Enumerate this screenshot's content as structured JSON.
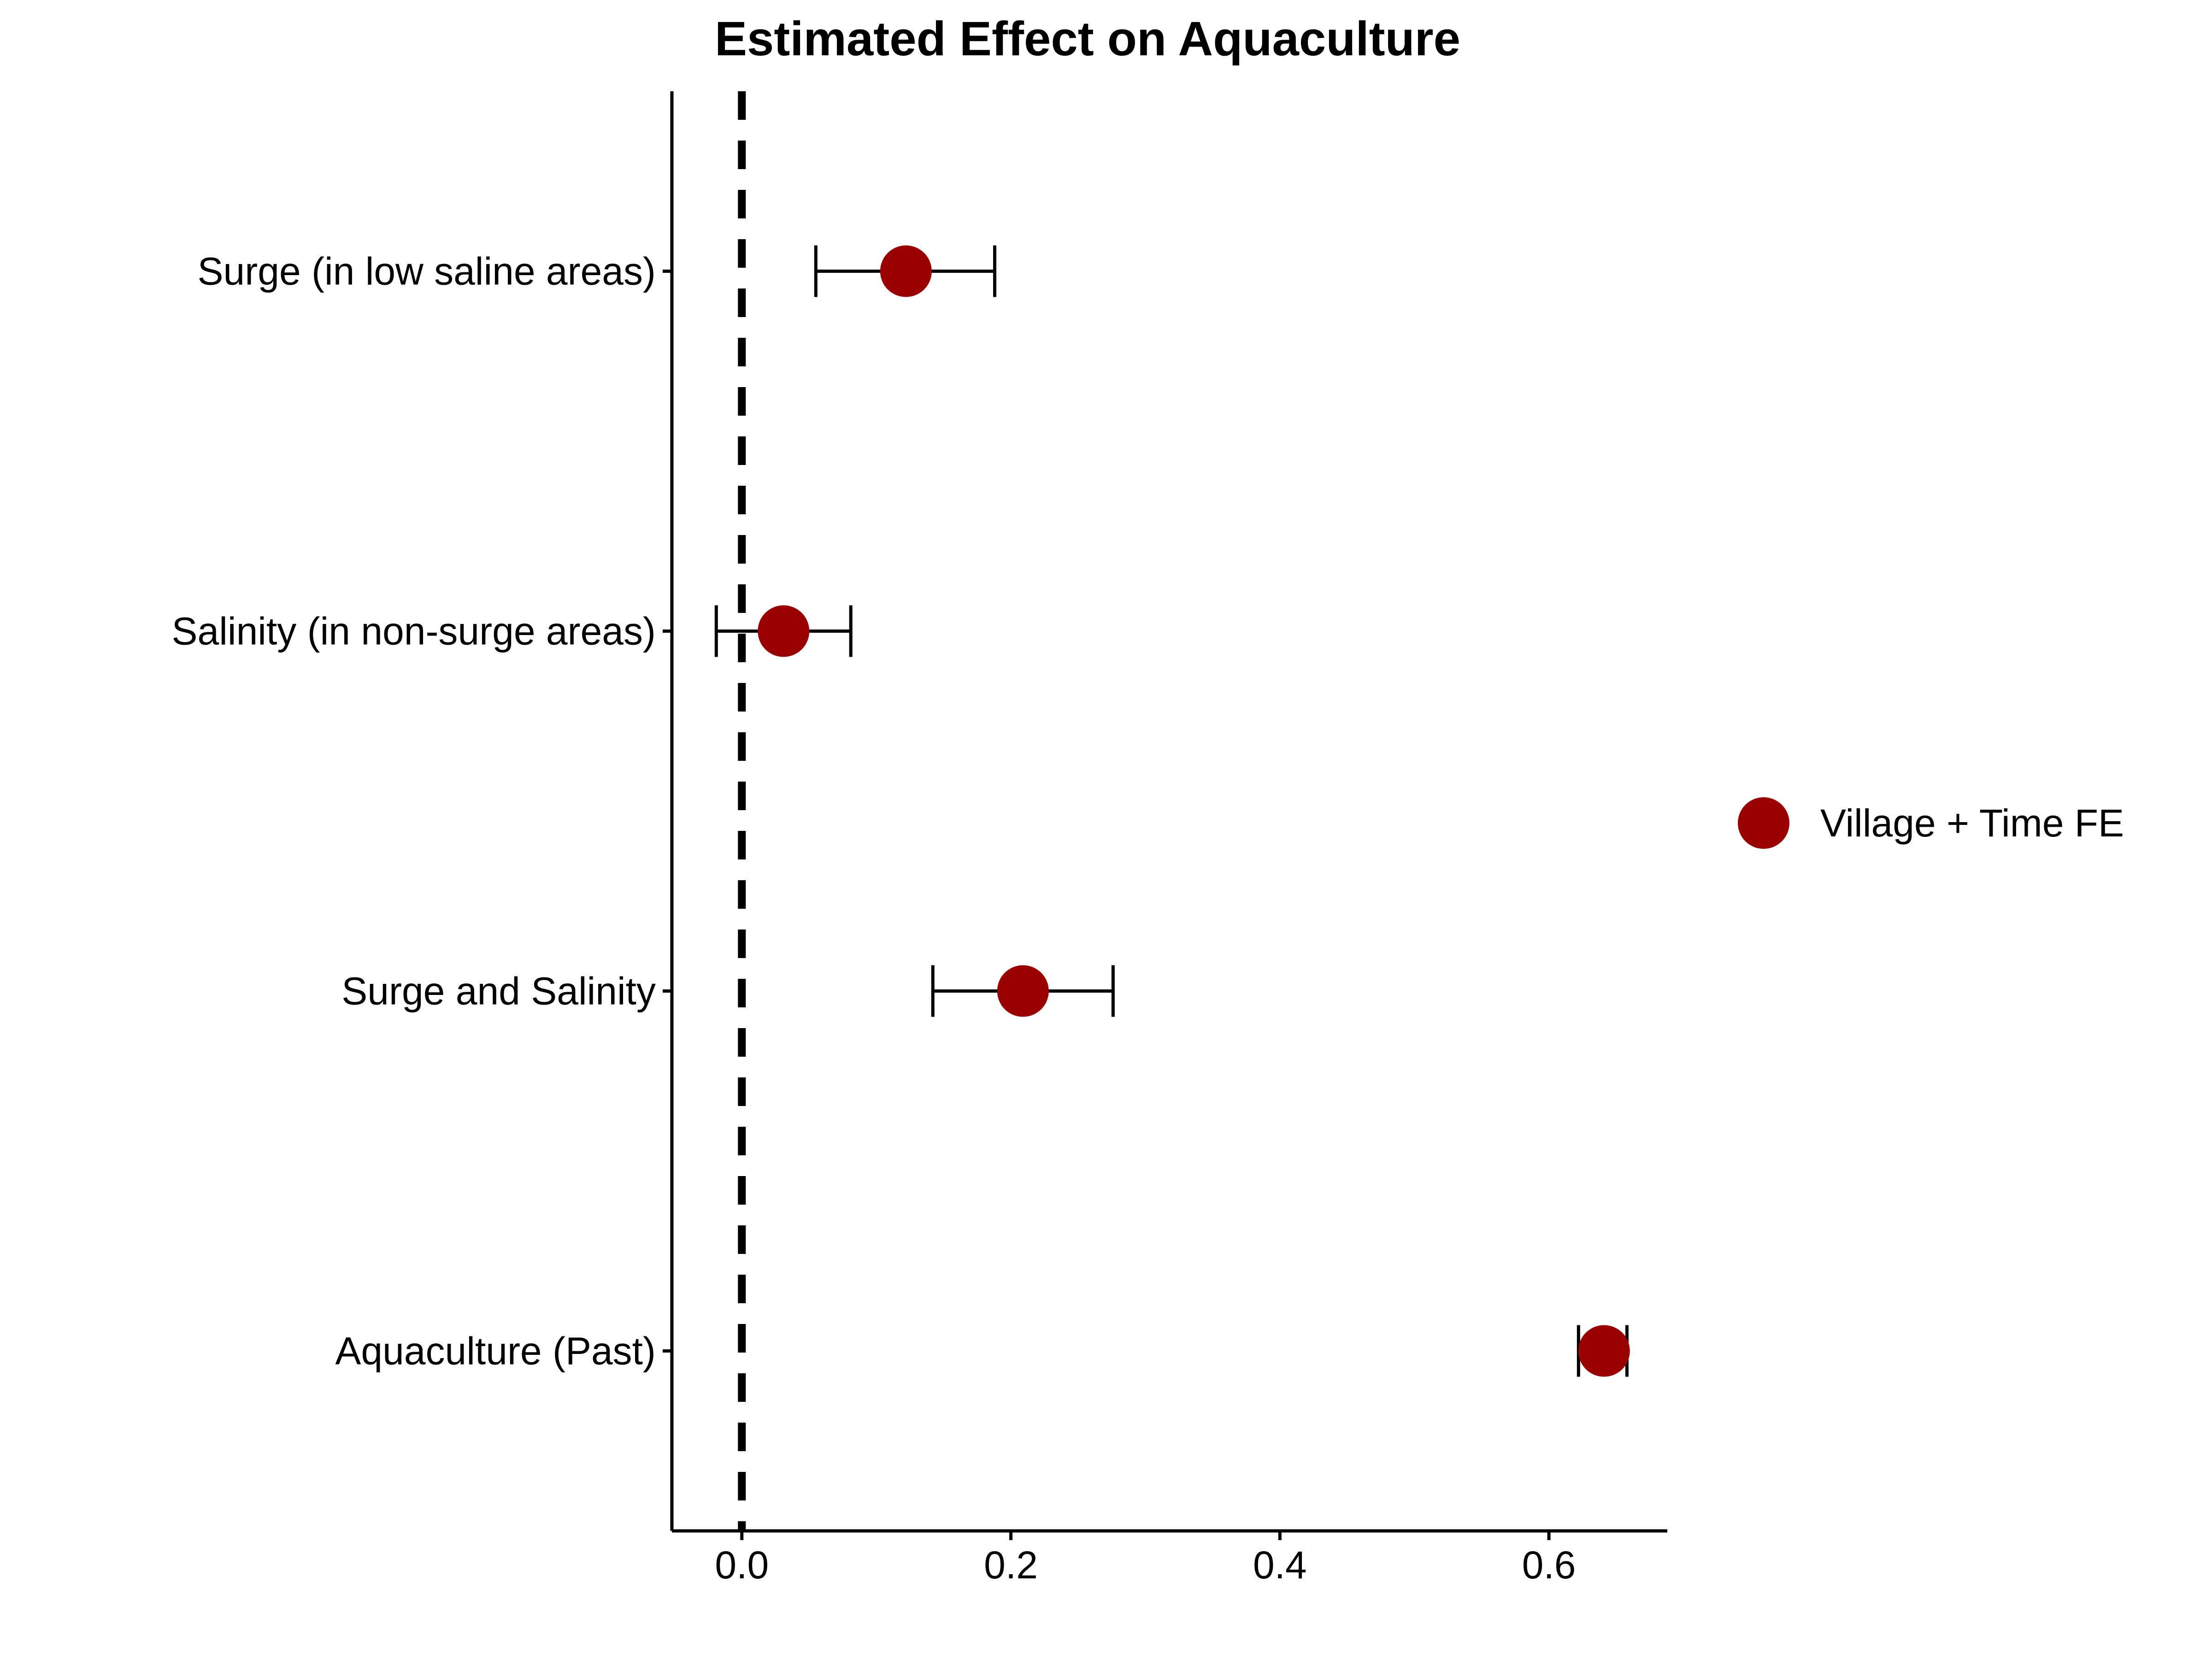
{
  "chart_data": {
    "type": "scatter",
    "title": "Estimated Effect on Aquaculture",
    "xlabel": "",
    "ylabel": "",
    "xlim": [
      -0.052,
      0.688
    ],
    "xticks": [
      "0.0",
      "0.2",
      "0.4",
      "0.6"
    ],
    "xtick_values": [
      0.0,
      0.2,
      0.4,
      0.6
    ],
    "reference_line": {
      "x": 0.0,
      "style": "dashed"
    },
    "grid": false,
    "legend_position": "right",
    "categories": [
      "Surge (in low saline areas)",
      "Salinity (in non-surge areas)",
      "Surge and Salinity",
      "Aquaculture (Past)"
    ],
    "series": [
      {
        "name": "Village + Time FE",
        "color": "#990000",
        "estimates": [
          0.122,
          0.031,
          0.209,
          0.641
        ],
        "ci_low": [
          0.055,
          -0.019,
          0.142,
          0.622
        ],
        "ci_high": [
          0.188,
          0.081,
          0.276,
          0.658
        ]
      }
    ]
  }
}
